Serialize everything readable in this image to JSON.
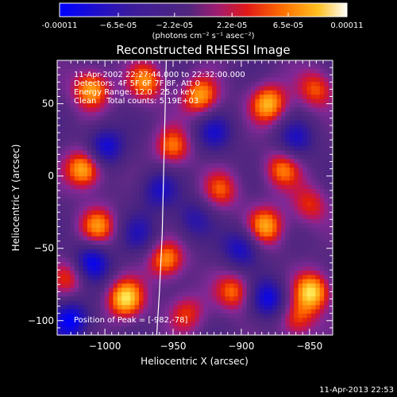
{
  "chart_data": {
    "type": "heatmap",
    "title": "Reconstructed RHESSI Image",
    "xlabel": "Heliocentric X (arcsec)",
    "ylabel": "Heliocentric Y (arcsec)",
    "xlim": [
      -1035,
      -833
    ],
    "ylim": [
      -110,
      80
    ],
    "x_ticks": [
      -1000,
      -950,
      -900,
      -850
    ],
    "x_tick_labels": [
      "−1000",
      "−950",
      "−900",
      "−850"
    ],
    "y_ticks": [
      -100,
      -50,
      0,
      50
    ],
    "y_tick_labels": [
      "−100",
      "−50",
      "0",
      "50"
    ],
    "grid": false,
    "colorbar": {
      "orientation": "horizontal",
      "location": "top",
      "min": -0.00011,
      "max": 0.00011,
      "tick_values": [
        -0.00011,
        -6.5e-05,
        -2.2e-05,
        2.2e-05,
        6.5e-05,
        0.00011
      ],
      "tick_labels": [
        "-0.00011",
        "−6.5e-05",
        "−2.2e-05",
        "2.2e-05",
        "6.5e-05",
        "0.00011"
      ],
      "units": "(photons cm⁻² s⁻¹ asec⁻²)",
      "colors": [
        "#0000ff",
        "#3a1aa0",
        "#4a237a",
        "#702ea0",
        "#c01860",
        "#e02010",
        "#ff6000",
        "#ffa000",
        "#ffe040",
        "#ffffff"
      ]
    },
    "peaks": [
      {
        "x": -1010,
        "y": 60,
        "v": 0.9
      },
      {
        "x": -1015,
        "y": 5,
        "v": 1.0
      },
      {
        "x": -1005,
        "y": -35,
        "v": 0.75
      },
      {
        "x": -985,
        "y": -85,
        "v": 1.0
      },
      {
        "x": -955,
        "y": -58,
        "v": 0.8
      },
      {
        "x": -950,
        "y": 20,
        "v": 0.7
      },
      {
        "x": -930,
        "y": 55,
        "v": 0.85
      },
      {
        "x": -915,
        "y": -10,
        "v": 0.6
      },
      {
        "x": -905,
        "y": -80,
        "v": 0.7
      },
      {
        "x": -880,
        "y": 50,
        "v": 0.9
      },
      {
        "x": -882,
        "y": -35,
        "v": 0.85
      },
      {
        "x": -870,
        "y": 5,
        "v": 0.7
      },
      {
        "x": -848,
        "y": -80,
        "v": 1.0
      },
      {
        "x": -850,
        "y": -20,
        "v": 0.55
      },
      {
        "x": -845,
        "y": 60,
        "v": 0.65
      },
      {
        "x": -970,
        "y": 65,
        "v": 0.75
      },
      {
        "x": -1025,
        "y": -70,
        "v": 0.6
      },
      {
        "x": -940,
        "y": -95,
        "v": 0.55
      },
      {
        "x": -860,
        "y": -100,
        "v": 0.6
      }
    ],
    "troughs": [
      {
        "x": -1000,
        "y": 20,
        "v": -0.8
      },
      {
        "x": -1010,
        "y": -60,
        "v": -0.9
      },
      {
        "x": -960,
        "y": -10,
        "v": -0.6
      },
      {
        "x": -920,
        "y": 30,
        "v": -0.6
      },
      {
        "x": -900,
        "y": -50,
        "v": -0.7
      },
      {
        "x": -880,
        "y": -85,
        "v": -0.8
      },
      {
        "x": -860,
        "y": 25,
        "v": -0.6
      },
      {
        "x": -1025,
        "y": -100,
        "v": -0.9
      },
      {
        "x": -935,
        "y": -30,
        "v": -0.5
      },
      {
        "x": -975,
        "y": -40,
        "v": -0.5
      }
    ],
    "limb_curve": [
      [
        -955,
        80
      ],
      [
        -956,
        40
      ],
      [
        -957,
        0
      ],
      [
        -958,
        -40
      ],
      [
        -960,
        -80
      ],
      [
        -962,
        -110
      ]
    ],
    "annotations": {
      "time_range": "11-Apr-2002 22:27:44.000 to 22:32:00.000",
      "detectors": "Detectors: 4F 5F 6F 7F 8F, Att 0",
      "energy_range": "Energy Range: 12.0 - 25.0 keV",
      "clean": "Clean    Total counts: 5.19E+03",
      "peak": "Position of Peak = [-982,-78]"
    }
  },
  "footer": {
    "timestamp": "11-Apr-2013 22:53"
  }
}
